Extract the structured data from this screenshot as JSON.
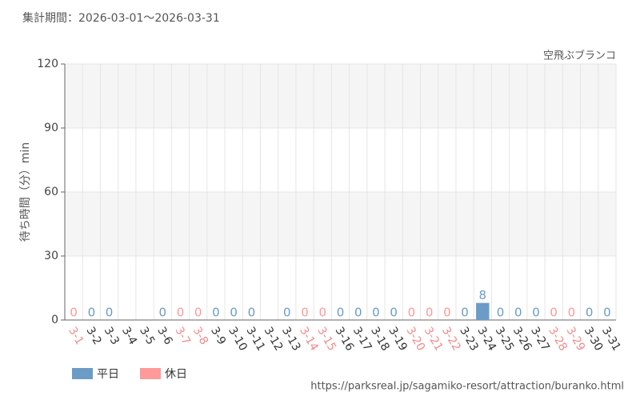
{
  "chart_data": {
    "type": "bar",
    "title": "集計期間：2026-03-01〜2026-03-31",
    "subtitle": "空飛ぶブランコ",
    "y_label": "待ち時間（分）min",
    "source": "https://parksreal.jp/sagamiko-resort/attraction/buranko.html",
    "categories": [
      "3-1",
      "3-2",
      "3-3",
      "3-4",
      "3-5",
      "3-6",
      "3-7",
      "3-8",
      "3-9",
      "3-10",
      "3-11",
      "3-12",
      "3-13",
      "3-14",
      "3-15",
      "3-16",
      "3-17",
      "3-18",
      "3-19",
      "3-20",
      "3-21",
      "3-22",
      "3-23",
      "3-24",
      "3-25",
      "3-26",
      "3-27",
      "3-28",
      "3-29",
      "3-30",
      "3-31"
    ],
    "category_colors": [
      "#f08a8a",
      "#333333",
      "#333333",
      "#333333",
      "#333333",
      "#333333",
      "#f08a8a",
      "#f08a8a",
      "#333333",
      "#333333",
      "#333333",
      "#333333",
      "#333333",
      "#f08a8a",
      "#f08a8a",
      "#333333",
      "#333333",
      "#333333",
      "#333333",
      "#f08a8a",
      "#f08a8a",
      "#f08a8a",
      "#333333",
      "#333333",
      "#333333",
      "#333333",
      "#333333",
      "#f08a8a",
      "#f08a8a",
      "#333333",
      "#333333"
    ],
    "series": [
      {
        "name": "平日",
        "color": "#6b9cc6",
        "values": [
          null,
          0,
          0,
          null,
          null,
          0,
          null,
          null,
          0,
          0,
          0,
          null,
          0,
          null,
          null,
          0,
          0,
          0,
          0,
          null,
          null,
          null,
          0,
          8,
          0,
          0,
          0,
          null,
          null,
          0,
          0
        ]
      },
      {
        "name": "休日",
        "color": "#ff9a9a",
        "values": [
          0,
          null,
          null,
          null,
          null,
          null,
          0,
          0,
          null,
          null,
          null,
          null,
          null,
          0,
          0,
          null,
          null,
          null,
          null,
          0,
          0,
          0,
          null,
          null,
          null,
          null,
          null,
          0,
          0,
          null,
          null
        ]
      }
    ],
    "ylim": [
      0,
      120
    ],
    "yticks": [
      0,
      30,
      60,
      90,
      120
    ],
    "grid": true
  }
}
